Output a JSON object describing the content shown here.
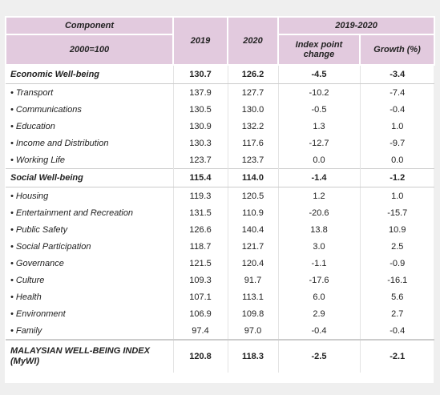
{
  "header": {
    "component": "Component",
    "base": "2000=100",
    "y2019": "2019",
    "y2020": "2020",
    "period": "2019-2020",
    "change": "Index point change",
    "growth": "Growth (%)"
  },
  "sections": [
    {
      "name": "Economic Well-being",
      "values": [
        "130.7",
        "126.2",
        "-4.5",
        "-3.4"
      ],
      "items": [
        {
          "name": "• Transport",
          "values": [
            "137.9",
            "127.7",
            "-10.2",
            "-7.4"
          ]
        },
        {
          "name": "• Communications",
          "values": [
            "130.5",
            "130.0",
            "-0.5",
            "-0.4"
          ]
        },
        {
          "name": "• Education",
          "values": [
            "130.9",
            "132.2",
            "1.3",
            "1.0"
          ]
        },
        {
          "name": "• Income and Distribution",
          "values": [
            "130.3",
            "117.6",
            "-12.7",
            "-9.7"
          ]
        },
        {
          "name": "• Working Life",
          "values": [
            "123.7",
            "123.7",
            "0.0",
            "0.0"
          ]
        }
      ]
    },
    {
      "name": "Social Well-being",
      "values": [
        "115.4",
        "114.0",
        "-1.4",
        "-1.2"
      ],
      "items": [
        {
          "name": "• Housing",
          "values": [
            "119.3",
            "120.5",
            "1.2",
            "1.0"
          ]
        },
        {
          "name": "• Entertainment and Recreation",
          "values": [
            "131.5",
            "110.9",
            "-20.6",
            "-15.7"
          ]
        },
        {
          "name": "• Public Safety",
          "values": [
            "126.6",
            "140.4",
            "13.8",
            "10.9"
          ]
        },
        {
          "name": "• Social Participation",
          "values": [
            "118.7",
            "121.7",
            "3.0",
            "2.5"
          ]
        },
        {
          "name": "• Governance",
          "values": [
            "121.5",
            "120.4",
            "-1.1",
            "-0.9"
          ]
        },
        {
          "name": "• Culture",
          "values": [
            "109.3",
            "91.7",
            "-17.6",
            "-16.1"
          ]
        },
        {
          "name": "• Health",
          "values": [
            "107.1",
            "113.1",
            "6.0",
            "5.6"
          ]
        },
        {
          "name": "• Environment",
          "values": [
            "106.9",
            "109.8",
            "2.9",
            "2.7"
          ]
        },
        {
          "name": "• Family",
          "values": [
            "97.4",
            "97.0",
            "-0.4",
            "-0.4"
          ]
        }
      ]
    }
  ],
  "total": {
    "name": "MALAYSIAN WELL-BEING INDEX (MyWI)",
    "values": [
      "120.8",
      "118.3",
      "-2.5",
      "-2.1"
    ]
  }
}
